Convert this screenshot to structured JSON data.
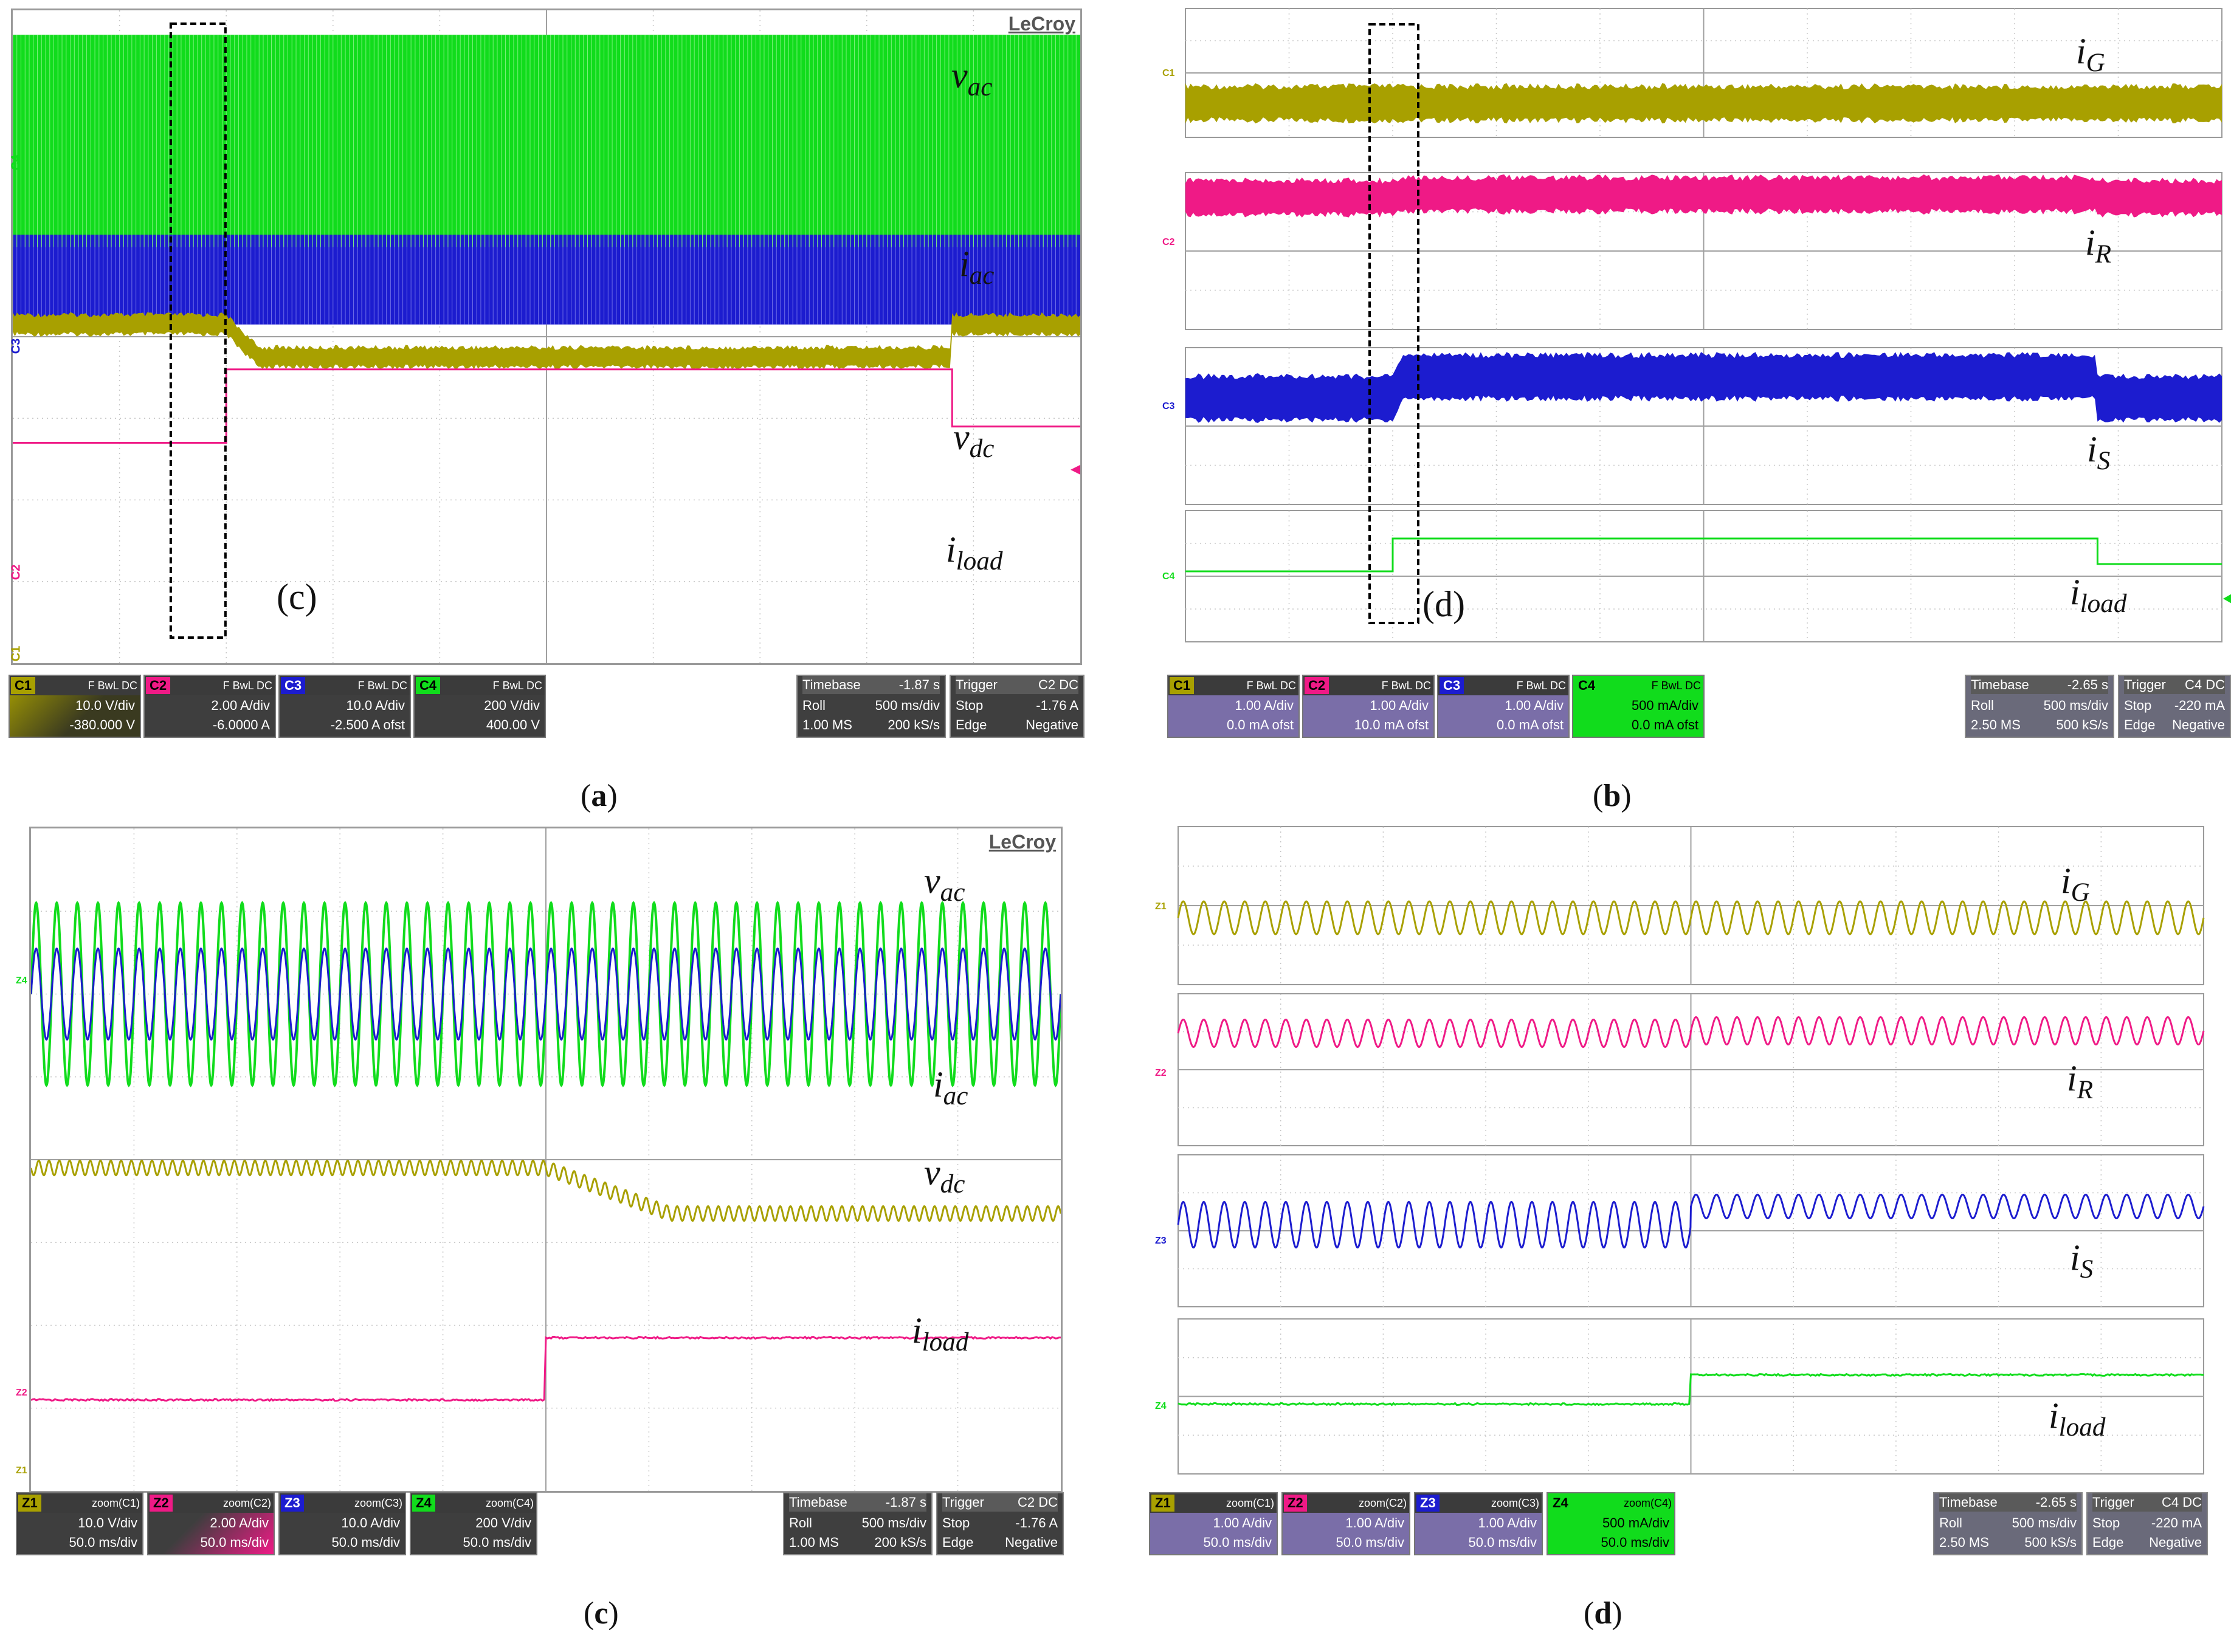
{
  "colors": {
    "c1": "#a8a000",
    "c2": "#ef1a86",
    "c3": "#1c1ccf",
    "c4": "#11dc1c",
    "grid": "#c8c8c8"
  },
  "panels": {
    "a": {
      "brand": "LeCroy",
      "caption": {
        "open": "(",
        "letter": "a",
        "close": ")"
      },
      "box_label": "(c)",
      "labels": {
        "vac": "v",
        "vac_sub": "ac",
        "iac": "i",
        "iac_sub": "ac",
        "vdc": "v",
        "vdc_sub": "dc",
        "iload": "i",
        "iload_sub": "load"
      },
      "markers": {
        "c4": "C4",
        "c3": "C3",
        "c1": "C1",
        "c2": "C2"
      },
      "channels": [
        {
          "tag": "C1",
          "flags": "F BwL DC",
          "line1": "10.0 V/div",
          "line2": "-380.000 V"
        },
        {
          "tag": "C2",
          "flags": "F BwL DC",
          "line1": "2.00 A/div",
          "line2": "-6.0000 A"
        },
        {
          "tag": "C3",
          "flags": "F BwL DC",
          "line1": "10.0 A/div",
          "line2": "-2.500 A ofst"
        },
        {
          "tag": "C4",
          "flags": "F BwL DC",
          "line1": "200 V/div",
          "line2": "400.00 V"
        }
      ],
      "timebase": {
        "h1": "Timebase",
        "h1v": "-1.87 s",
        "r1": "Roll",
        "r1v": "500 ms/div",
        "r2": "1.00 MS",
        "r2v": "200 kS/s"
      },
      "trigger": {
        "h1": "Trigger",
        "h1v": "C2 DC",
        "r1": "Stop",
        "r1v": "-1.76 A",
        "r2": "Edge",
        "r2v": "Negative"
      }
    },
    "b": {
      "caption": {
        "open": "(",
        "letter": "b",
        "close": ")"
      },
      "box_label": "(d)",
      "labels": {
        "ig": "i",
        "ig_sub": "G",
        "ir": "i",
        "ir_sub": "R",
        "is": "i",
        "is_sub": "S",
        "iload": "i",
        "iload_sub": "load"
      },
      "markers": {
        "c1": "C1",
        "c2": "C2",
        "c3": "C3",
        "c4": "C4"
      },
      "channels": [
        {
          "tag": "C1",
          "flags": "F BwL DC",
          "line1": "1.00 A/div",
          "line2": "0.0 mA ofst"
        },
        {
          "tag": "C2",
          "flags": "F BwL DC",
          "line1": "1.00 A/div",
          "line2": "10.0 mA ofst"
        },
        {
          "tag": "C3",
          "flags": "F BwL DC",
          "line1": "1.00 A/div",
          "line2": "0.0 mA ofst"
        },
        {
          "tag": "C4",
          "flags": "F BwL DC",
          "line1": "500 mA/div",
          "line2": "0.0 mA ofst"
        }
      ],
      "timebase": {
        "h1": "Timebase",
        "h1v": "-2.65 s",
        "r1": "Roll",
        "r1v": "500 ms/div",
        "r2": "2.50 MS",
        "r2v": "500 kS/s"
      },
      "trigger": {
        "h1": "Trigger",
        "h1v": "C4 DC",
        "r1": "Stop",
        "r1v": "-220 mA",
        "r2": "Edge",
        "r2v": "Negative"
      }
    },
    "c": {
      "brand": "LeCroy",
      "caption": {
        "open": "(",
        "letter": "c",
        "close": ")"
      },
      "labels": {
        "vac": "v",
        "vac_sub": "ac",
        "iac": "i",
        "iac_sub": "ac",
        "vdc": "v",
        "vdc_sub": "dc",
        "iload": "i",
        "iload_sub": "load"
      },
      "markers": {
        "z4": "Z4",
        "z2": "Z2",
        "z1": "Z1"
      },
      "channels": [
        {
          "tag": "Z1",
          "flags": "zoom(C1)",
          "line1": "10.0 V/div",
          "line2": "50.0 ms/div"
        },
        {
          "tag": "Z2",
          "flags": "zoom(C2)",
          "line1": "2.00 A/div",
          "line2": "50.0 ms/div"
        },
        {
          "tag": "Z3",
          "flags": "zoom(C3)",
          "line1": "10.0 A/div",
          "line2": "50.0 ms/div"
        },
        {
          "tag": "Z4",
          "flags": "zoom(C4)",
          "line1": "200 V/div",
          "line2": "50.0 ms/div"
        }
      ],
      "timebase": {
        "h1": "Timebase",
        "h1v": "-1.87 s",
        "r1": "Roll",
        "r1v": "500 ms/div",
        "r2": "1.00 MS",
        "r2v": "200 kS/s"
      },
      "trigger": {
        "h1": "Trigger",
        "h1v": "C2 DC",
        "r1": "Stop",
        "r1v": "-1.76 A",
        "r2": "Edge",
        "r2v": "Negative"
      }
    },
    "d": {
      "caption": {
        "open": "(",
        "letter": "d",
        "close": ")"
      },
      "labels": {
        "ig": "i",
        "ig_sub": "G",
        "ir": "i",
        "ir_sub": "R",
        "is": "i",
        "is_sub": "S",
        "iload": "i",
        "iload_sub": "load"
      },
      "markers": {
        "z1": "Z1",
        "z2": "Z2",
        "z3": "Z3",
        "z4": "Z4"
      },
      "channels": [
        {
          "tag": "Z1",
          "flags": "zoom(C1)",
          "line1": "1.00 A/div",
          "line2": "50.0 ms/div"
        },
        {
          "tag": "Z2",
          "flags": "zoom(C2)",
          "line1": "1.00 A/div",
          "line2": "50.0 ms/div"
        },
        {
          "tag": "Z3",
          "flags": "zoom(C3)",
          "line1": "1.00 A/div",
          "line2": "50.0 ms/div"
        },
        {
          "tag": "Z4",
          "flags": "zoom(C4)",
          "line1": "500 mA/div",
          "line2": "50.0 ms/div"
        }
      ],
      "timebase": {
        "h1": "Timebase",
        "h1v": "-2.65 s",
        "r1": "Roll",
        "r1v": "500 ms/div",
        "r2": "2.50 MS",
        "r2v": "500 kS/s"
      },
      "trigger": {
        "h1": "Trigger",
        "h1v": "C4 DC",
        "r1": "Stop",
        "r1v": "-220 mA",
        "r2": "Edge",
        "r2v": "Negative"
      }
    }
  },
  "chart_data": [
    {
      "type": "line",
      "panel": "a",
      "x_unit": "div",
      "xlim": [
        0,
        10
      ],
      "series": [
        {
          "name": "vac",
          "channel": "C4",
          "kind": "dense-ac",
          "center_div": 1.6,
          "amplitude_div": 1.3
        },
        {
          "name": "iac",
          "channel": "C3",
          "kind": "dense-ac",
          "center_div": 3.3,
          "amplitude_div": 0.55
        },
        {
          "name": "vdc",
          "channel": "C1",
          "kind": "step",
          "t_step_div": [
            2.0,
            8.8
          ],
          "levels_div": [
            3.85,
            4.25,
            3.85
          ]
        },
        {
          "name": "iload",
          "channel": "C2",
          "kind": "step",
          "t_step_div": [
            2.0,
            8.8
          ],
          "levels_div": [
            5.3,
            4.4,
            5.1
          ]
        }
      ]
    },
    {
      "type": "line",
      "panel": "b",
      "x_unit": "div",
      "xlim": [
        0,
        10
      ],
      "series": [
        {
          "name": "iG",
          "channel": "C1",
          "kind": "band",
          "t_step_div": [
            2.0,
            8.8
          ],
          "levels_div": [
            0.0,
            0.0,
            0.0
          ]
        },
        {
          "name": "iR",
          "channel": "C2",
          "kind": "band",
          "t_step_div": [
            2.0,
            8.8
          ],
          "levels_div": [
            0.0,
            0.05,
            0.0
          ]
        },
        {
          "name": "iS",
          "channel": "C3",
          "kind": "band",
          "t_step_div": [
            2.0,
            8.8
          ],
          "levels_div": [
            0.0,
            0.35,
            0.0
          ]
        },
        {
          "name": "iload",
          "channel": "C4",
          "kind": "step",
          "t_step_div": [
            2.0,
            8.8
          ],
          "levels_div": [
            0.0,
            0.45,
            0.1
          ]
        }
      ]
    },
    {
      "type": "line",
      "panel": "c",
      "x_unit": "div",
      "xlim": [
        0,
        10
      ],
      "series": [
        {
          "name": "vac",
          "channel": "Z4",
          "kind": "sine",
          "cycles": 50,
          "amplitude_div": 1.1
        },
        {
          "name": "iac",
          "channel": "Z3",
          "kind": "sine",
          "cycles": 50,
          "amplitude_div": 0.55
        },
        {
          "name": "vdc",
          "channel": "Z1",
          "kind": "step-ripple",
          "t_step_div": 5.0,
          "levels_div": [
            0,
            0.55
          ]
        },
        {
          "name": "iload",
          "channel": "Z2",
          "kind": "step",
          "t_step_div": 5.0,
          "levels_div": [
            0,
            0.75
          ]
        }
      ]
    },
    {
      "type": "line",
      "panel": "d",
      "x_unit": "div",
      "xlim": [
        0,
        10
      ],
      "series": [
        {
          "name": "iG",
          "channel": "Z1",
          "kind": "sine",
          "cycles": 50,
          "amplitude_div": 0.18
        },
        {
          "name": "iR",
          "channel": "Z2",
          "kind": "sine",
          "cycles": 50,
          "amplitude_div": 0.15
        },
        {
          "name": "iS",
          "channel": "Z3",
          "kind": "sine-step",
          "cycles": 50,
          "t_step_div": 5.0,
          "amplitude_div": [
            0.25,
            0.13
          ]
        },
        {
          "name": "iload",
          "channel": "Z4",
          "kind": "step",
          "t_step_div": 5.0,
          "levels_div": [
            0,
            0.3
          ]
        }
      ]
    }
  ]
}
